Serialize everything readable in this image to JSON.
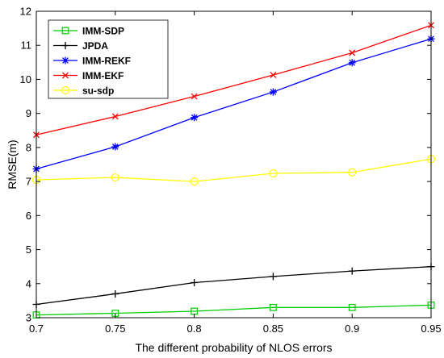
{
  "chart_data": {
    "type": "line",
    "xlabel": "The different probability of NLOS errors",
    "ylabel": "RMSE(m)",
    "x": [
      0.7,
      0.75,
      0.8,
      0.85,
      0.9,
      0.95
    ],
    "x_ticks": [
      "0.7",
      "0.75",
      "0.8",
      "0.85",
      "0.9",
      "0.95"
    ],
    "y_ticks": [
      "3",
      "4",
      "5",
      "6",
      "7",
      "8",
      "9",
      "10",
      "11",
      "12"
    ],
    "xlim": [
      0.7,
      0.95
    ],
    "ylim": [
      3,
      12
    ],
    "grid": false,
    "legend_position": "top-left",
    "series": [
      {
        "name": "IMM-SDP",
        "color": "#00cc00",
        "marker": "square",
        "values": [
          3.08,
          3.13,
          3.19,
          3.3,
          3.3,
          3.37
        ]
      },
      {
        "name": "JPDA",
        "color": "#000000",
        "marker": "plus",
        "values": [
          3.39,
          3.7,
          4.03,
          4.21,
          4.37,
          4.5
        ]
      },
      {
        "name": "IMM-REKF",
        "color": "#0000ff",
        "marker": "asterisk",
        "values": [
          7.37,
          8.02,
          8.88,
          9.63,
          10.49,
          11.19
        ]
      },
      {
        "name": "IMM-EKF",
        "color": "#ff0000",
        "marker": "x",
        "values": [
          8.37,
          8.91,
          9.5,
          10.13,
          10.78,
          11.59
        ]
      },
      {
        "name": "su-sdp",
        "color": "#ffff00",
        "marker": "circle",
        "values": [
          7.05,
          7.12,
          7.0,
          7.24,
          7.27,
          7.66
        ]
      }
    ]
  }
}
